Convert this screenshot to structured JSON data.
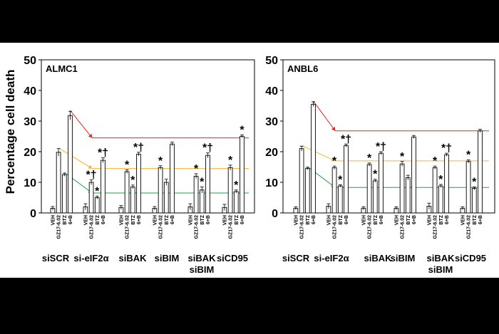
{
  "chart_data": [
    {
      "type": "bar",
      "title": "ALMC1",
      "ylabel": "Percentage cell death",
      "ylim": [
        0,
        50
      ],
      "yticks": [
        0,
        10,
        20,
        30,
        40,
        50
      ],
      "bar_labels": [
        "VEH",
        "GZ17-6.02",
        "BTZ",
        "6+B"
      ],
      "groups": [
        {
          "name": "siSCR",
          "values": [
            1.5,
            19.8,
            12.5,
            31.8
          ],
          "errors": [
            0.6,
            1.2,
            0.5,
            1.4
          ],
          "marks": [
            "",
            "",
            "",
            ""
          ]
        },
        {
          "name": "si-eIF2α",
          "values": [
            2.0,
            10.0,
            5.0,
            17.2
          ],
          "errors": [
            1.0,
            0.8,
            0.5,
            0.8
          ],
          "marks": [
            "",
            "*†",
            "*",
            "*†"
          ]
        },
        {
          "name": "siBAK",
          "values": [
            1.8,
            13.5,
            8.5,
            19.2
          ],
          "errors": [
            0.6,
            0.6,
            0.6,
            0.6
          ],
          "marks": [
            "",
            "*",
            "*",
            "*†"
          ]
        },
        {
          "name": "siBIM",
          "values": [
            1.5,
            14.8,
            10.0,
            22.5
          ],
          "errors": [
            0.6,
            0.6,
            1.0,
            0.6
          ],
          "marks": [
            "",
            "*",
            "",
            ""
          ]
        },
        {
          "name": "siBAK siBIM",
          "values": [
            2.0,
            12.0,
            7.5,
            18.8
          ],
          "errors": [
            1.0,
            0.8,
            1.0,
            0.8
          ],
          "marks": [
            "",
            "*",
            "*",
            "*†"
          ]
        },
        {
          "name": "siCD95",
          "values": [
            1.8,
            14.8,
            7.0,
            25.0
          ],
          "errors": [
            1.0,
            0.8,
            0.5,
            0.5
          ],
          "marks": [
            "",
            "*",
            "*",
            "*"
          ]
        }
      ],
      "trend_lines": [
        {
          "color": "#e8231f",
          "from": [
            "siSCR",
            "6+B"
          ],
          "to_value": 24.5
        },
        {
          "color": "#f5b52e",
          "from": [
            "siSCR",
            "GZ17-6.02"
          ],
          "to_value": 14.5
        },
        {
          "color": "#22a04b",
          "from": [
            "siSCR",
            "BTZ"
          ],
          "to_value": 6.5
        }
      ]
    },
    {
      "type": "bar",
      "title": "ANBL6",
      "ylabel": "",
      "ylim": [
        0,
        50
      ],
      "yticks": [
        0,
        10,
        20,
        30,
        40,
        50
      ],
      "bar_labels": [
        "VEH",
        "GZ17-6.02",
        "BTZ",
        "6+B"
      ],
      "groups": [
        {
          "name": "siSCR",
          "values": [
            1.5,
            21.0,
            14.5,
            35.5
          ],
          "errors": [
            0.5,
            0.8,
            0.4,
            0.8
          ],
          "marks": [
            "",
            "",
            "",
            ""
          ]
        },
        {
          "name": "si-eIF2α",
          "values": [
            2.2,
            14.8,
            8.8,
            22.0
          ],
          "errors": [
            0.8,
            0.5,
            0.4,
            0.5
          ],
          "marks": [
            "",
            "*",
            "*",
            "*†"
          ]
        },
        {
          "name": "siBAK",
          "values": [
            1.5,
            15.8,
            10.5,
            19.5
          ],
          "errors": [
            0.5,
            0.5,
            0.5,
            0.5
          ],
          "marks": [
            "",
            "*",
            "*",
            "*†"
          ]
        },
        {
          "name": "siBIM",
          "values": [
            1.5,
            16.0,
            11.5,
            24.8
          ],
          "errors": [
            0.5,
            0.8,
            0.8,
            0.5
          ],
          "marks": [
            "",
            "*",
            "",
            ""
          ]
        },
        {
          "name": "siBAK siBIM",
          "values": [
            2.2,
            14.8,
            8.8,
            19.0
          ],
          "errors": [
            1.0,
            0.5,
            0.5,
            0.5
          ],
          "marks": [
            "",
            "*",
            "*",
            "*†"
          ]
        },
        {
          "name": "siCD95",
          "values": [
            1.5,
            16.8,
            8.0,
            26.8
          ],
          "errors": [
            0.5,
            0.5,
            0.5,
            0.5
          ],
          "marks": [
            "",
            "*",
            "*",
            ""
          ]
        }
      ],
      "trend_lines": [
        {
          "color": "#e8231f",
          "from": [
            "siSCR",
            "6+B"
          ],
          "to_value": 26.8
        },
        {
          "color": "#f5b52e",
          "from": [
            "siSCR",
            "GZ17-6.02"
          ],
          "to_value": 17.0
        },
        {
          "color": "#22a04b",
          "from": [
            "siSCR",
            "BTZ"
          ],
          "to_value": 8.3
        }
      ]
    }
  ]
}
